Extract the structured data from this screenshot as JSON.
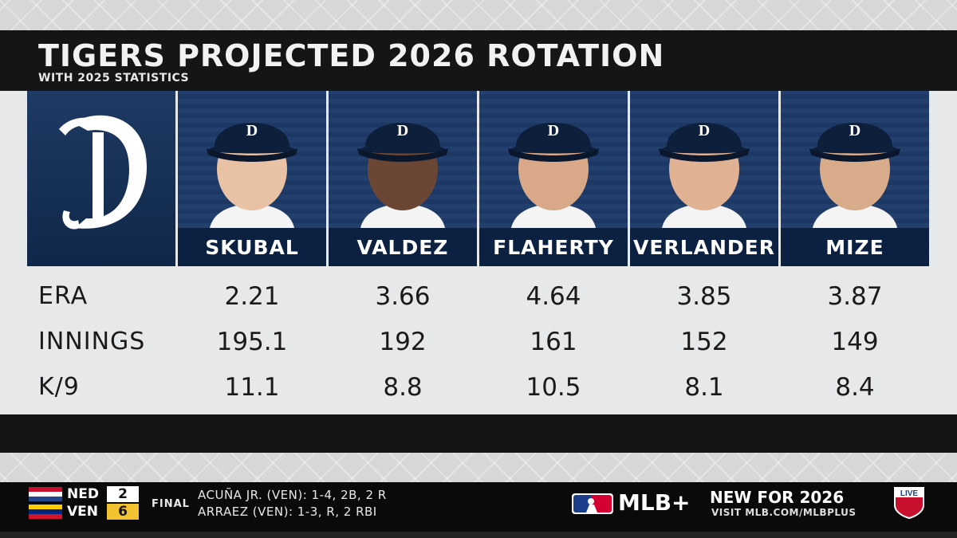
{
  "header": {
    "title": "TIGERS PROJECTED 2026 ROTATION",
    "subtitle": "WITH 2025 STATISTICS"
  },
  "players": [
    {
      "name": "SKUBAL",
      "era": "2.21",
      "innings": "195.1",
      "k9": "11.1"
    },
    {
      "name": "VALDEZ",
      "era": "3.66",
      "innings": "192",
      "k9": "8.8"
    },
    {
      "name": "FLAHERTY",
      "era": "4.64",
      "innings": "161",
      "k9": "10.5"
    },
    {
      "name": "VERLANDER",
      "era": "3.85",
      "innings": "152",
      "k9": "8.1"
    },
    {
      "name": "MIZE",
      "era": "3.87",
      "innings": "149",
      "k9": "8.4"
    }
  ],
  "rows": {
    "era": "ERA",
    "innings": "INNINGS",
    "k9": "K/9"
  },
  "ticker": {
    "team1": {
      "abbr": "NED",
      "score": "2"
    },
    "team2": {
      "abbr": "VEN",
      "score": "6"
    },
    "status": "FINAL",
    "line1": "ACUÑA JR. (VEN): 1-4, 2B, 2 R",
    "line2": "ARRAEZ (VEN): 1-3, R, 2 RBI",
    "brand": "MLB+",
    "promo_title": "NEW FOR 2026",
    "promo_url": "VISIT MLB.COM/MLBPLUS",
    "live": "LIVE"
  },
  "colors": {
    "tigers_navy": "#0c2141",
    "photo_bg": "#1c3764",
    "bar_dark": "#151515"
  }
}
